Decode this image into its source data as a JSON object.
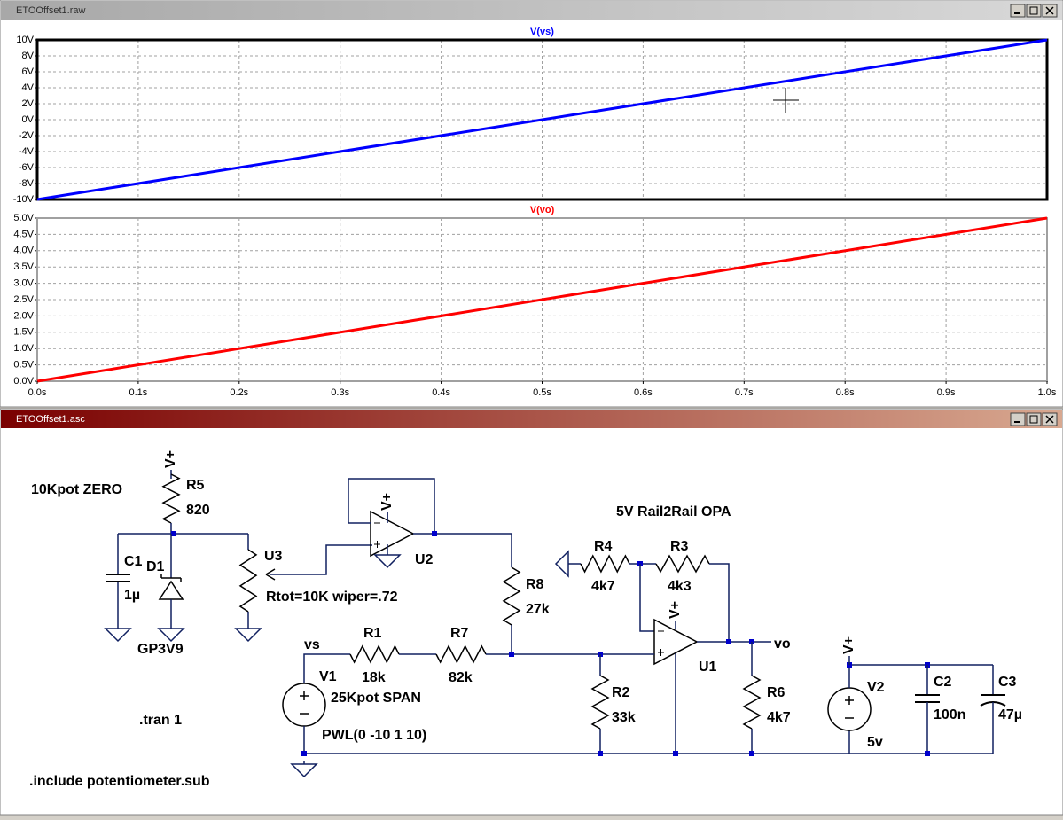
{
  "waveform_window": {
    "title": "ETOOffset1.raw",
    "type": "line",
    "xlim": [
      0,
      1
    ],
    "xticks": [
      {
        "value": 0,
        "label": "0.0s"
      },
      {
        "value": 0.1,
        "label": "0.1s"
      },
      {
        "value": 0.2,
        "label": "0.2s"
      },
      {
        "value": 0.3,
        "label": "0.3s"
      },
      {
        "value": 0.4,
        "label": "0.4s"
      },
      {
        "value": 0.5,
        "label": "0.5s"
      },
      {
        "value": 0.6,
        "label": "0.6s"
      },
      {
        "value": 0.7,
        "label": "0.7s"
      },
      {
        "value": 0.8,
        "label": "0.8s"
      },
      {
        "value": 0.9,
        "label": "0.9s"
      },
      {
        "value": 1,
        "label": "1.0s"
      }
    ],
    "grid": true,
    "panes": [
      {
        "name": "V(vs)",
        "color": "#0000ff",
        "x": [
          0,
          1
        ],
        "values": [
          -10,
          10
        ],
        "ylim": [
          -10,
          10
        ],
        "yticks": [
          {
            "value": -10,
            "label": "-10V"
          },
          {
            "value": -8,
            "label": "-8V"
          },
          {
            "value": -6,
            "label": "-6V"
          },
          {
            "value": -4,
            "label": "-4V"
          },
          {
            "value": -2,
            "label": "-2V"
          },
          {
            "value": 0,
            "label": "0V"
          },
          {
            "value": 2,
            "label": "2V"
          },
          {
            "value": 4,
            "label": "4V"
          },
          {
            "value": 6,
            "label": "6V"
          },
          {
            "value": 8,
            "label": "8V"
          },
          {
            "value": 10,
            "label": "10V"
          }
        ]
      },
      {
        "name": "V(vo)",
        "color": "#ff0000",
        "x": [
          0,
          1
        ],
        "values": [
          0,
          5
        ],
        "ylim": [
          0,
          5
        ],
        "yticks": [
          {
            "value": 0,
            "label": "0.0V"
          },
          {
            "value": 0.5,
            "label": "0.5V"
          },
          {
            "value": 1,
            "label": "1.0V"
          },
          {
            "value": 1.5,
            "label": "1.5V"
          },
          {
            "value": 2,
            "label": "2.0V"
          },
          {
            "value": 2.5,
            "label": "2.5V"
          },
          {
            "value": 3,
            "label": "3.0V"
          },
          {
            "value": 3.5,
            "label": "3.5V"
          },
          {
            "value": 4,
            "label": "4.0V"
          },
          {
            "value": 4.5,
            "label": "4.5V"
          },
          {
            "value": 5,
            "label": "5.0V"
          }
        ]
      }
    ]
  },
  "schematic_window": {
    "title": "ETOOffset1.asc",
    "annotations": [
      "10Kpot ZERO",
      "5V Rail2Rail OPA",
      "25Kpot SPAN"
    ],
    "directives": [
      ".tran 1",
      ".include potentiometer.sub"
    ],
    "supply": "V+",
    "nets": [
      "vs",
      "vo"
    ],
    "components": [
      {
        "ref": "R5",
        "value": "820"
      },
      {
        "ref": "C1",
        "value": "1µ"
      },
      {
        "ref": "D1",
        "value": "GP3V9"
      },
      {
        "ref": "U3",
        "value": "Rtot=10K wiper=.72"
      },
      {
        "ref": "U2"
      },
      {
        "ref": "R8",
        "value": "27k"
      },
      {
        "ref": "R4",
        "value": "4k7"
      },
      {
        "ref": "R3",
        "value": "4k3"
      },
      {
        "ref": "R1",
        "value": "18k"
      },
      {
        "ref": "R7",
        "value": "82k"
      },
      {
        "ref": "R2",
        "value": "33k"
      },
      {
        "ref": "U1"
      },
      {
        "ref": "R6",
        "value": "4k7"
      },
      {
        "ref": "V1",
        "value": "PWL(0 -10 1 10)"
      },
      {
        "ref": "V2",
        "value": "5v"
      },
      {
        "ref": "C2",
        "value": "100n"
      },
      {
        "ref": "C3",
        "value": "47µ"
      }
    ]
  }
}
